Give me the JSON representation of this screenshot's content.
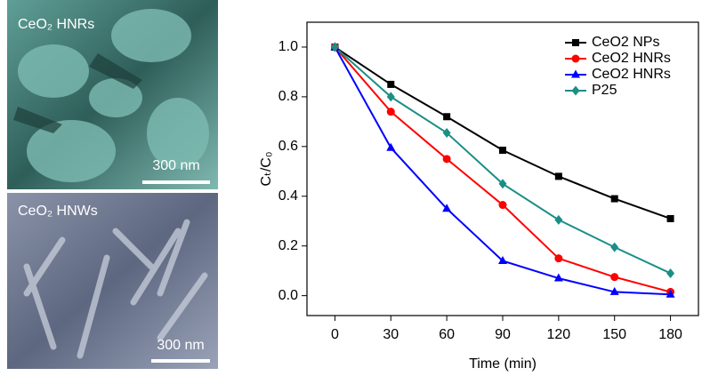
{
  "images": [
    {
      "label": "CeO₂ HNRs",
      "scale_bar": "300 nm"
    },
    {
      "label": "CeO₂ HNWs",
      "scale_bar": "300 nm"
    }
  ],
  "chart_data": {
    "type": "line",
    "x_label": "Time (min)",
    "y_label": "Cₜ/C₀",
    "x": [
      0,
      30,
      60,
      90,
      120,
      150,
      180
    ],
    "series": [
      {
        "name": "CeO2 NPs",
        "color": "#000000",
        "marker": "square",
        "values": [
          1.0,
          0.85,
          0.72,
          0.585,
          0.48,
          0.39,
          0.31
        ]
      },
      {
        "name": "CeO2 HNRs",
        "color": "#ff0000",
        "marker": "circle",
        "values": [
          1.0,
          0.74,
          0.55,
          0.365,
          0.15,
          0.075,
          0.015
        ]
      },
      {
        "name": "CeO2 HNRs",
        "color": "#0000ff",
        "marker": "triangle",
        "values": [
          1.0,
          0.595,
          0.35,
          0.14,
          0.07,
          0.015,
          0.005
        ]
      },
      {
        "name": "P25",
        "color": "#1a8f86",
        "marker": "diamond",
        "values": [
          1.0,
          0.8,
          0.655,
          0.45,
          0.305,
          0.195,
          0.09
        ]
      }
    ],
    "xlim": [
      -15,
      195
    ],
    "ylim": [
      -0.08,
      1.1
    ],
    "xticks": [
      0,
      30,
      60,
      90,
      120,
      150,
      180
    ],
    "yticks": [
      {
        "value": 0,
        "label": "0.0"
      },
      0.2,
      0.4,
      0.6,
      0.8,
      {
        "value": 1,
        "label": "1.0"
      }
    ],
    "legend": "upper right"
  }
}
